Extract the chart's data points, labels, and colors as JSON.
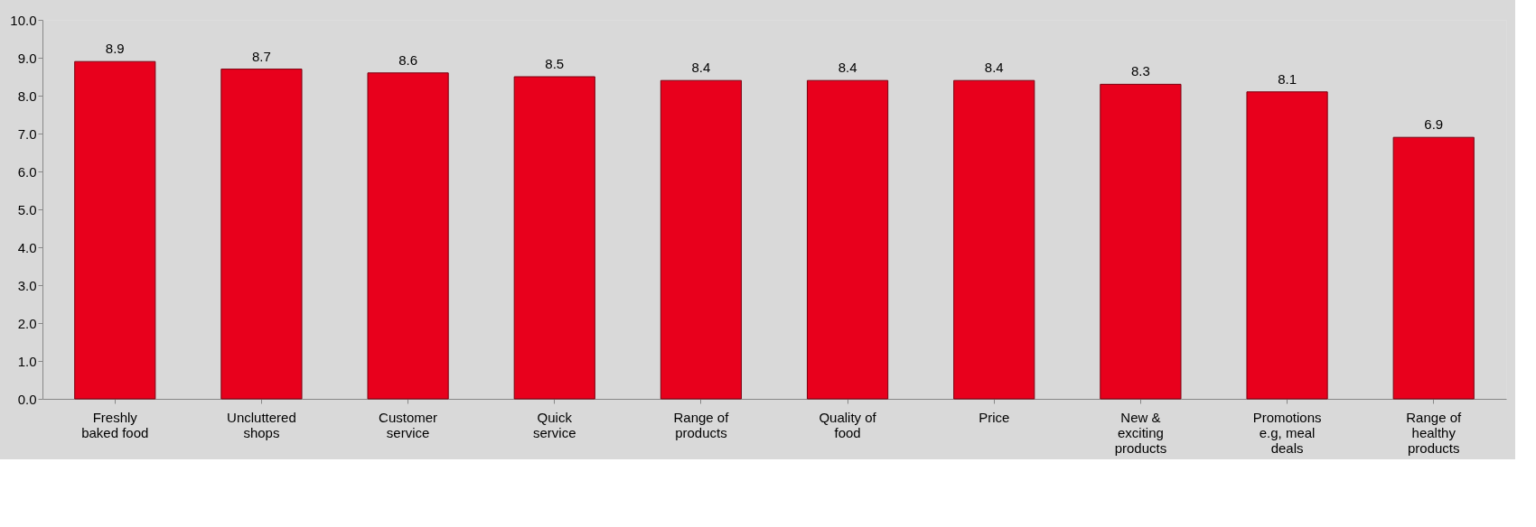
{
  "chart_data": {
    "type": "bar",
    "categories": [
      "Freshly baked food",
      "Uncluttered shops",
      "Customer service",
      "Quick service",
      "Range of products",
      "Quality of food",
      "Price",
      "New & exciting products",
      "Promotions e.g, meal deals",
      "Range of healthy products"
    ],
    "values": [
      8.9,
      8.7,
      8.6,
      8.5,
      8.4,
      8.4,
      8.4,
      8.3,
      8.1,
      6.9
    ],
    "color": "#e8001c",
    "ylim": [
      0,
      10
    ],
    "yticks": [
      {
        "value": 0,
        "label": "0.0"
      },
      {
        "value": 1,
        "label": "1.0"
      },
      {
        "value": 2,
        "label": "2.0"
      },
      {
        "value": 3,
        "label": "3.0"
      },
      {
        "value": 4,
        "label": "4.0"
      },
      {
        "value": 5,
        "label": "5.0"
      },
      {
        "value": 6,
        "label": "6.0"
      },
      {
        "value": 7,
        "label": "7.0"
      },
      {
        "value": 8,
        "label": "8.0"
      },
      {
        "value": 9,
        "label": "9.0"
      },
      {
        "value": 10,
        "label": "10.0"
      }
    ],
    "data_labels": true
  }
}
